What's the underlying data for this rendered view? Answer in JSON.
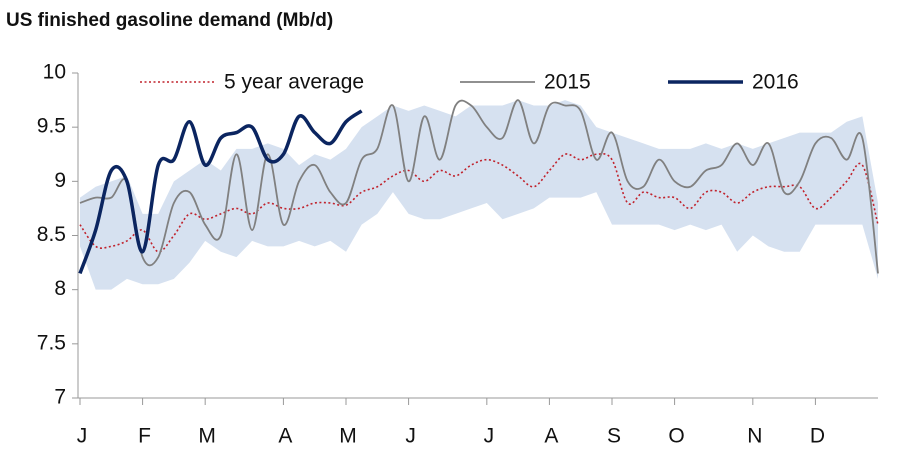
{
  "chart_data": {
    "type": "line",
    "title": "US finished gasoline demand (Mb/d)",
    "categories": [
      "J",
      null,
      null,
      null,
      "F",
      null,
      null,
      null,
      "M",
      null,
      null,
      null,
      null,
      "A",
      null,
      null,
      null,
      "M",
      null,
      null,
      null,
      "J",
      null,
      null,
      null,
      null,
      "J",
      null,
      null,
      null,
      "A",
      null,
      null,
      null,
      "S",
      null,
      null,
      null,
      "O",
      null,
      null,
      null,
      null,
      "N",
      null,
      null,
      null,
      "D",
      null,
      null,
      null,
      null
    ],
    "ylim": [
      7,
      10
    ],
    "yticks": [
      7,
      7.5,
      8,
      8.5,
      9,
      9.5,
      10
    ],
    "grid": false,
    "range": {
      "color": "#d6e1f0",
      "high": [
        8.85,
        8.95,
        9.0,
        9.05,
        8.7,
        8.7,
        9.0,
        9.1,
        9.2,
        9.1,
        9.3,
        9.3,
        9.35,
        9.3,
        9.15,
        9.25,
        9.2,
        9.3,
        9.5,
        9.6,
        9.7,
        9.65,
        9.7,
        9.65,
        9.6,
        9.7,
        9.7,
        9.7,
        9.75,
        9.7,
        9.7,
        9.75,
        9.7,
        9.5,
        9.45,
        9.4,
        9.35,
        9.3,
        9.3,
        9.3,
        9.35,
        9.3,
        9.35,
        9.3,
        9.35,
        9.4,
        9.45,
        9.45,
        9.45,
        9.55,
        9.6,
        8.8
      ],
      "low": [
        8.4,
        8.0,
        8.0,
        8.1,
        8.05,
        8.05,
        8.1,
        8.25,
        8.45,
        8.35,
        8.3,
        8.45,
        8.4,
        8.4,
        8.45,
        8.4,
        8.45,
        8.35,
        8.6,
        8.7,
        8.9,
        8.7,
        8.65,
        8.65,
        8.7,
        8.75,
        8.8,
        8.65,
        8.7,
        8.75,
        8.85,
        8.85,
        8.85,
        8.9,
        8.6,
        8.6,
        8.6,
        8.6,
        8.55,
        8.6,
        8.55,
        8.6,
        8.35,
        8.5,
        8.4,
        8.35,
        8.35,
        8.6,
        8.6,
        8.6,
        8.6,
        8.1
      ]
    },
    "series": [
      {
        "name": "5 year average",
        "color": "#c0222c",
        "style": "dotted",
        "values": [
          8.6,
          8.4,
          8.4,
          8.45,
          8.55,
          8.35,
          8.5,
          8.7,
          8.65,
          8.7,
          8.75,
          8.7,
          8.8,
          8.75,
          8.75,
          8.8,
          8.8,
          8.78,
          8.9,
          8.95,
          9.05,
          9.1,
          9.0,
          9.1,
          9.05,
          9.15,
          9.2,
          9.15,
          9.05,
          8.95,
          9.1,
          9.25,
          9.2,
          9.25,
          9.2,
          8.8,
          8.9,
          8.85,
          8.85,
          8.75,
          8.9,
          8.9,
          8.8,
          8.9,
          8.95,
          8.95,
          8.95,
          8.75,
          8.85,
          9.0,
          9.15,
          8.6
        ]
      },
      {
        "name": "2015",
        "color": "#808080",
        "style": "solid",
        "values": [
          8.8,
          8.85,
          8.85,
          9.0,
          8.3,
          8.3,
          8.8,
          8.9,
          8.6,
          8.5,
          9.25,
          8.55,
          9.25,
          8.6,
          9.0,
          9.15,
          8.9,
          8.8,
          9.2,
          9.3,
          9.7,
          9.0,
          9.6,
          9.2,
          9.7,
          9.7,
          9.5,
          9.4,
          9.75,
          9.35,
          9.7,
          9.7,
          9.65,
          9.2,
          9.45,
          9.0,
          8.95,
          9.2,
          9.0,
          8.95,
          9.1,
          9.15,
          9.35,
          9.15,
          9.35,
          8.9,
          9.0,
          9.35,
          9.4,
          9.2,
          9.4,
          8.15
        ]
      },
      {
        "name": "2016",
        "color": "#0b2560",
        "style": "thick",
        "values": [
          8.15,
          8.55,
          9.1,
          9.0,
          8.35,
          9.15,
          9.2,
          9.55,
          9.15,
          9.4,
          9.45,
          9.5,
          9.2,
          9.25,
          9.6,
          9.45,
          9.35,
          9.55,
          9.65,
          null,
          null,
          null,
          null,
          null,
          null,
          null,
          null,
          null,
          null,
          null,
          null,
          null,
          null,
          null,
          null,
          null,
          null,
          null,
          null,
          null,
          null,
          null,
          null,
          null,
          null,
          null,
          null,
          null,
          null,
          null,
          null,
          null
        ]
      }
    ]
  }
}
